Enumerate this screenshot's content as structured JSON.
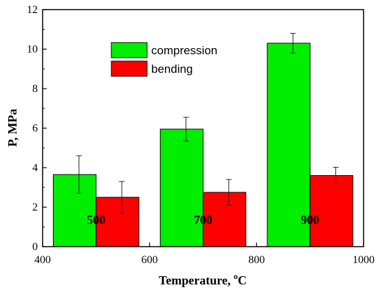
{
  "chart_data": {
    "type": "bar",
    "xlabel": "Temperature, ",
    "xlabel_unit_sup": "o",
    "xlabel_unit": "C",
    "ylabel": "P, MPa",
    "xlim": [
      400,
      1000
    ],
    "ylim": [
      0,
      12
    ],
    "x_ticks": [
      "400",
      "600",
      "800",
      "1000"
    ],
    "x_tick_values": [
      400,
      600,
      800,
      1000
    ],
    "y_ticks": [
      "0",
      "2",
      "4",
      "6",
      "8",
      "10",
      "12"
    ],
    "y_tick_values": [
      0,
      2,
      4,
      6,
      8,
      10,
      12
    ],
    "categories": [
      "500",
      "700",
      "900"
    ],
    "category_x": [
      500,
      700,
      900
    ],
    "bar_width": 80,
    "legend_position": "top-center",
    "grid": false,
    "series": [
      {
        "name": "compression",
        "color": "#00ee00",
        "values": [
          3.65,
          5.95,
          10.3
        ],
        "errors": [
          0.95,
          0.6,
          0.5
        ]
      },
      {
        "name": "bending",
        "color": "#ff0000",
        "values": [
          2.5,
          2.75,
          3.6
        ],
        "errors": [
          0.8,
          0.65,
          0.42
        ]
      }
    ]
  }
}
